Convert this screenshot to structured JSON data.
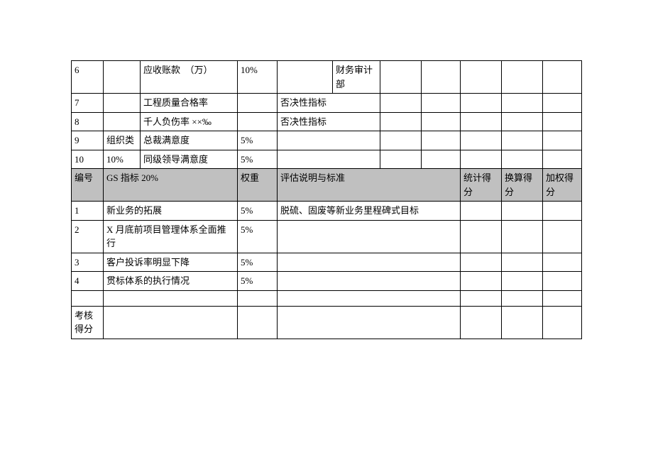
{
  "upper": {
    "rows": [
      {
        "num": "6",
        "cat": "",
        "name": "应收账款　（万）",
        "wt": "10%",
        "eval": "",
        "dept": "财务审计部",
        "tall": true
      },
      {
        "num": "7",
        "cat": "",
        "name": "工程质量合格率",
        "wt": "",
        "eval": "否决性指标",
        "dept": ""
      },
      {
        "num": "8",
        "cat": "",
        "name": "千人负伤率 ××‰",
        "wt": "",
        "eval": "否决性指标",
        "dept": ""
      },
      {
        "num": "9",
        "cat": "组织类",
        "name": "总裁满意度",
        "wt": "5%",
        "eval": "",
        "dept": ""
      },
      {
        "num": "10",
        "cat": "10%",
        "name": "同级领导满意度",
        "wt": "5%",
        "eval": "",
        "dept": ""
      }
    ]
  },
  "header2": {
    "num": "编号",
    "gs": "GS 指标 20%",
    "wt": "权重",
    "eval": "评估说明与标准",
    "s1": "统计得分",
    "s2": "换算得分",
    "s3": "加权得分"
  },
  "lower": {
    "rows": [
      {
        "num": "1",
        "name": "新业务的拓展",
        "wt": "5%",
        "eval": "脱硫、固废等新业务里程碑式目标"
      },
      {
        "num": "2",
        "name": "X 月底前项目管理体系全面推行",
        "wt": "5%",
        "eval": ""
      },
      {
        "num": "3",
        "name": "客户投诉率明显下降",
        "wt": "5%",
        "eval": ""
      },
      {
        "num": "4",
        "name": "贯标体系的执行情况",
        "wt": "5%",
        "eval": ""
      }
    ]
  },
  "footer": {
    "label": "考核得分"
  },
  "colors": {
    "header_bg": "#c0c0c0",
    "border": "#000000",
    "bg": "#ffffff"
  }
}
